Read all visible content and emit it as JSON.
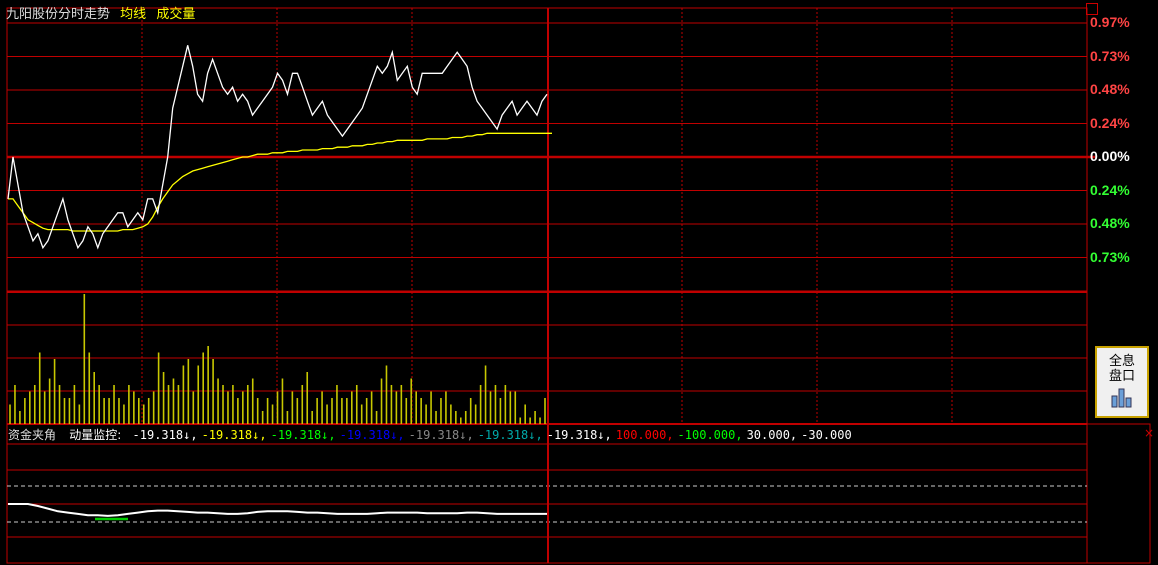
{
  "header": {
    "stock": "九阳股份",
    "chart_name": "分时走势",
    "ma_label": "均线",
    "vol_label": "成交量"
  },
  "right_axis": [
    "0.97%",
    "0.73%",
    "0.48%",
    "0.24%",
    "0.00%",
    "0.24%",
    "0.48%",
    "0.73%"
  ],
  "indicator": {
    "name": "资金夹角",
    "sub": "动量监控:",
    "items": [
      {
        "text": "-19.318↓,",
        "color": "#ffffff"
      },
      {
        "text": "-19.318↓,",
        "color": "#ffff00"
      },
      {
        "text": "-19.318↓,",
        "color": "#00ff00"
      },
      {
        "text": "-19.318↓,",
        "color": "#0000ff"
      },
      {
        "text": "-19.318↓,",
        "color": "#888888"
      },
      {
        "text": "-19.318↓,",
        "color": "#00aaaa"
      },
      {
        "text": "-19.318↓,",
        "color": "#ffffff"
      },
      {
        "text": "100.000,",
        "color": "#ff0000"
      },
      {
        "text": "-100.000,",
        "color": "#00ff00"
      },
      {
        "text": "30.000,",
        "color": "#ffffff"
      },
      {
        "text": "-30.000",
        "color": "#ffffff"
      }
    ]
  },
  "button": {
    "line1": "全息",
    "line2": "盘口"
  },
  "colors": {
    "grid": "#c00000",
    "price": "#ffffff",
    "avg": "#ffff00",
    "up": "#ff4444",
    "down": "#33ff33",
    "volume": "#c8c800"
  },
  "chart_data": {
    "type": "line",
    "y_axis_percent": [
      0.97,
      0.73,
      0.48,
      0.24,
      0.0,
      -0.24,
      -0.48,
      -0.73
    ],
    "price_series_percent": [
      -0.3,
      0.0,
      -0.2,
      -0.4,
      -0.5,
      -0.6,
      -0.55,
      -0.65,
      -0.6,
      -0.5,
      -0.4,
      -0.3,
      -0.45,
      -0.55,
      -0.65,
      -0.6,
      -0.5,
      -0.55,
      -0.65,
      -0.55,
      -0.5,
      -0.45,
      -0.4,
      -0.4,
      -0.5,
      -0.45,
      -0.4,
      -0.45,
      -0.3,
      -0.3,
      -0.4,
      -0.2,
      0.0,
      0.35,
      0.5,
      0.65,
      0.8,
      0.65,
      0.45,
      0.4,
      0.6,
      0.7,
      0.6,
      0.5,
      0.45,
      0.5,
      0.4,
      0.45,
      0.4,
      0.3,
      0.35,
      0.4,
      0.45,
      0.5,
      0.6,
      0.55,
      0.45,
      0.6,
      0.6,
      0.5,
      0.4,
      0.3,
      0.35,
      0.4,
      0.3,
      0.25,
      0.2,
      0.15,
      0.2,
      0.25,
      0.3,
      0.35,
      0.45,
      0.55,
      0.65,
      0.6,
      0.65,
      0.75,
      0.55,
      0.6,
      0.65,
      0.5,
      0.45,
      0.6,
      0.6,
      0.6,
      0.6,
      0.6,
      0.65,
      0.7,
      0.75,
      0.7,
      0.65,
      0.5,
      0.4,
      0.35,
      0.3,
      0.25,
      0.2,
      0.3,
      0.35,
      0.4,
      0.3,
      0.35,
      0.4,
      0.35,
      0.3,
      0.4,
      0.45
    ],
    "avg_series_percent": [
      -0.3,
      -0.3,
      -0.35,
      -0.4,
      -0.45,
      -0.47,
      -0.49,
      -0.51,
      -0.52,
      -0.52,
      -0.52,
      -0.52,
      -0.52,
      -0.53,
      -0.53,
      -0.53,
      -0.53,
      -0.53,
      -0.53,
      -0.53,
      -0.53,
      -0.53,
      -0.53,
      -0.52,
      -0.52,
      -0.52,
      -0.51,
      -0.5,
      -0.48,
      -0.43,
      -0.36,
      -0.3,
      -0.25,
      -0.2,
      -0.17,
      -0.14,
      -0.12,
      -0.1,
      -0.09,
      -0.08,
      -0.07,
      -0.06,
      -0.05,
      -0.04,
      -0.03,
      -0.02,
      -0.01,
      0.0,
      0.0,
      0.01,
      0.02,
      0.02,
      0.02,
      0.03,
      0.03,
      0.03,
      0.04,
      0.04,
      0.04,
      0.05,
      0.05,
      0.05,
      0.05,
      0.06,
      0.06,
      0.06,
      0.07,
      0.07,
      0.07,
      0.08,
      0.08,
      0.08,
      0.09,
      0.09,
      0.1,
      0.1,
      0.11,
      0.11,
      0.12,
      0.12,
      0.12,
      0.12,
      0.12,
      0.12,
      0.13,
      0.13,
      0.13,
      0.13,
      0.13,
      0.14,
      0.14,
      0.14,
      0.15,
      0.15,
      0.16,
      0.16,
      0.17,
      0.17,
      0.17,
      0.17,
      0.17,
      0.17,
      0.17,
      0.17,
      0.17,
      0.17,
      0.17,
      0.17,
      0.17,
      0.17
    ],
    "volume_relative": [
      0.15,
      0.3,
      0.1,
      0.2,
      0.25,
      0.3,
      0.55,
      0.25,
      0.35,
      0.5,
      0.3,
      0.2,
      0.2,
      0.3,
      0.15,
      1.0,
      0.55,
      0.4,
      0.3,
      0.2,
      0.2,
      0.3,
      0.2,
      0.15,
      0.3,
      0.25,
      0.2,
      0.15,
      0.2,
      0.25,
      0.55,
      0.4,
      0.3,
      0.35,
      0.3,
      0.45,
      0.5,
      0.25,
      0.45,
      0.55,
      0.6,
      0.5,
      0.35,
      0.3,
      0.25,
      0.3,
      0.2,
      0.25,
      0.3,
      0.35,
      0.2,
      0.1,
      0.2,
      0.15,
      0.25,
      0.35,
      0.1,
      0.25,
      0.2,
      0.3,
      0.4,
      0.1,
      0.2,
      0.25,
      0.15,
      0.2,
      0.3,
      0.2,
      0.2,
      0.25,
      0.3,
      0.15,
      0.2,
      0.25,
      0.1,
      0.35,
      0.45,
      0.3,
      0.25,
      0.3,
      0.2,
      0.35,
      0.25,
      0.2,
      0.15,
      0.25,
      0.1,
      0.2,
      0.25,
      0.15,
      0.1,
      0.05,
      0.1,
      0.2,
      0.15,
      0.3,
      0.45,
      0.25,
      0.3,
      0.2,
      0.3,
      0.25,
      0.25,
      0.05,
      0.15,
      0.05,
      0.1,
      0.05,
      0.2
    ],
    "indicator_series": [
      0.35,
      0.35,
      0.35,
      0.32,
      0.28,
      0.24,
      0.22,
      0.2,
      0.18,
      0.18,
      0.17,
      0.18,
      0.2,
      0.22,
      0.24,
      0.25,
      0.25,
      0.24,
      0.23,
      0.22,
      0.22,
      0.21,
      0.2,
      0.2,
      0.21,
      0.23,
      0.24,
      0.24,
      0.24,
      0.23,
      0.22,
      0.22,
      0.21,
      0.2,
      0.2,
      0.2,
      0.2,
      0.21,
      0.22,
      0.22,
      0.22,
      0.22,
      0.21,
      0.21,
      0.21,
      0.21,
      0.22,
      0.22,
      0.21,
      0.2,
      0.2,
      0.2,
      0.2,
      0.2,
      0.2
    ]
  }
}
